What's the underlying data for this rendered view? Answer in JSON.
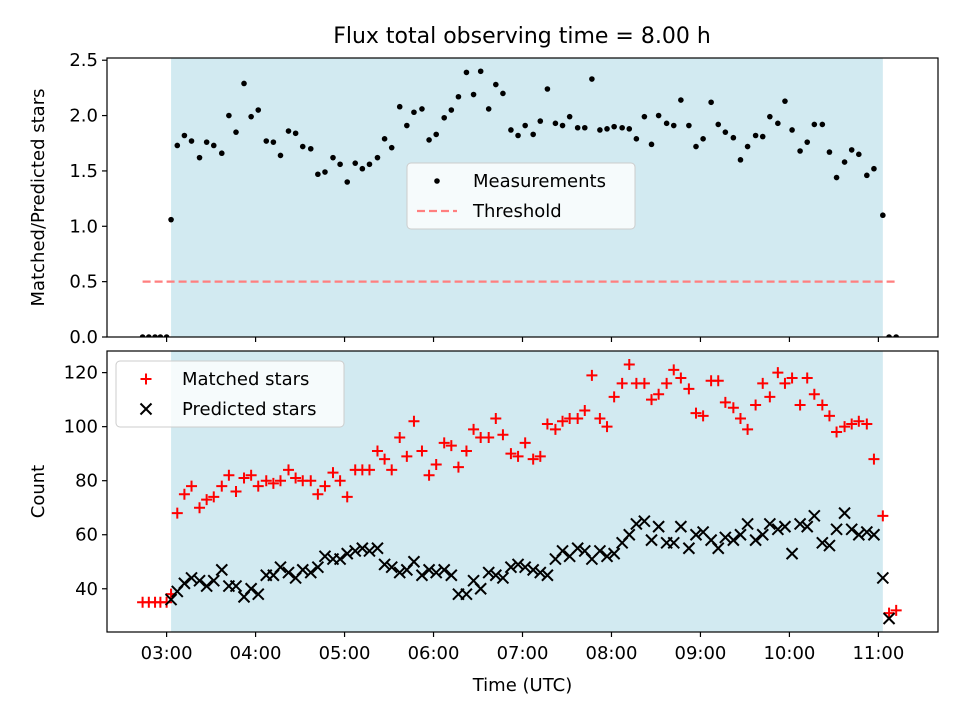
{
  "title": "Flux total observing time = 8.00 h",
  "colors": {
    "shade": "#add8e6",
    "measurement": "#000000",
    "threshold": "#ff7f7f",
    "matched": "#ff0000",
    "predicted": "#000000"
  },
  "chart_data": [
    {
      "type": "scatter",
      "panel": "top",
      "title": "Flux total observing time = 8.00 h",
      "ylabel": "Matched/Predicted stars",
      "xlim": [
        2.33,
        11.67
      ],
      "ylim": [
        0,
        2.52
      ],
      "yticks": [
        0.0,
        0.5,
        1.0,
        1.5,
        2.0,
        2.5
      ],
      "ytick_labels": [
        "0.0",
        "0.5",
        "1.0",
        "1.5",
        "2.0",
        "2.5"
      ],
      "shaded_span": [
        3.05,
        11.05
      ],
      "legend": {
        "placement": "center",
        "entries": [
          "Measurements",
          "Threshold"
        ]
      },
      "series": [
        {
          "name": "Measurements",
          "marker": "dot",
          "x": [
            2.73,
            2.8,
            2.87,
            2.93,
            3.0,
            3.05,
            3.12,
            3.2,
            3.28,
            3.37,
            3.45,
            3.53,
            3.62,
            3.7,
            3.78,
            3.87,
            3.95,
            4.03,
            4.12,
            4.2,
            4.28,
            4.37,
            4.45,
            4.53,
            4.62,
            4.7,
            4.78,
            4.87,
            4.95,
            5.03,
            5.12,
            5.2,
            5.28,
            5.37,
            5.45,
            5.53,
            5.62,
            5.7,
            5.78,
            5.87,
            5.95,
            6.03,
            6.12,
            6.2,
            6.28,
            6.37,
            6.45,
            6.53,
            6.62,
            6.7,
            6.78,
            6.87,
            6.95,
            7.03,
            7.12,
            7.2,
            7.28,
            7.37,
            7.45,
            7.53,
            7.62,
            7.7,
            7.78,
            7.87,
            7.95,
            8.03,
            8.12,
            8.2,
            8.28,
            8.37,
            8.45,
            8.53,
            8.62,
            8.7,
            8.78,
            8.87,
            8.95,
            9.03,
            9.12,
            9.2,
            9.28,
            9.37,
            9.45,
            9.53,
            9.62,
            9.7,
            9.78,
            9.87,
            9.95,
            10.03,
            10.12,
            10.2,
            10.28,
            10.37,
            10.45,
            10.53,
            10.62,
            10.7,
            10.78,
            10.87,
            10.95,
            11.05,
            11.12,
            11.2
          ],
          "y": [
            0.0,
            0.0,
            0.0,
            0.0,
            0.0,
            1.06,
            1.73,
            1.82,
            1.77,
            1.62,
            1.76,
            1.73,
            1.66,
            2.0,
            1.85,
            2.29,
            1.99,
            2.05,
            1.77,
            1.76,
            1.64,
            1.86,
            1.84,
            1.72,
            1.7,
            1.47,
            1.49,
            1.62,
            1.56,
            1.4,
            1.57,
            1.52,
            1.56,
            1.62,
            1.79,
            1.71,
            2.08,
            1.91,
            2.03,
            2.06,
            1.78,
            1.83,
            1.98,
            2.05,
            2.17,
            2.39,
            2.19,
            2.4,
            2.06,
            2.28,
            2.2,
            1.87,
            1.82,
            1.91,
            1.83,
            1.95,
            2.24,
            1.93,
            1.91,
            1.99,
            1.89,
            1.89,
            2.33,
            1.87,
            1.88,
            1.9,
            1.89,
            1.88,
            1.79,
            1.99,
            1.74,
            2.0,
            1.93,
            1.91,
            2.14,
            1.91,
            1.72,
            1.79,
            2.12,
            1.92,
            1.85,
            1.8,
            1.6,
            1.72,
            1.82,
            1.81,
            1.99,
            1.93,
            2.13,
            1.87,
            1.68,
            1.76,
            1.92,
            1.92,
            1.67,
            1.44,
            1.58,
            1.69,
            1.65,
            1.46,
            1.52,
            1.1,
            0.0,
            0.0
          ]
        },
        {
          "name": "Threshold",
          "style": "dashed-line",
          "x": [
            2.73,
            11.2
          ],
          "y": [
            0.5,
            0.5
          ]
        }
      ]
    },
    {
      "type": "scatter",
      "panel": "bottom",
      "xlabel": "Time (UTC)",
      "ylabel": "Count",
      "xlim": [
        2.33,
        11.67
      ],
      "ylim": [
        24,
        128
      ],
      "xticks": [
        3,
        4,
        5,
        6,
        7,
        8,
        9,
        10,
        11
      ],
      "xtick_labels": [
        "03:00",
        "04:00",
        "05:00",
        "06:00",
        "07:00",
        "08:00",
        "09:00",
        "10:00",
        "11:00"
      ],
      "yticks": [
        40,
        60,
        80,
        100,
        120
      ],
      "ytick_labels": [
        "40",
        "60",
        "80",
        "100",
        "120"
      ],
      "shaded_span": [
        3.05,
        11.05
      ],
      "legend": {
        "placement": "top-left",
        "entries": [
          "Matched stars",
          "Predicted stars"
        ]
      },
      "series": [
        {
          "name": "Matched stars",
          "marker": "plus",
          "x": [
            2.73,
            2.8,
            2.87,
            2.93,
            3.0,
            3.05,
            3.12,
            3.2,
            3.28,
            3.37,
            3.45,
            3.53,
            3.62,
            3.7,
            3.78,
            3.87,
            3.95,
            4.03,
            4.12,
            4.2,
            4.28,
            4.37,
            4.45,
            4.53,
            4.62,
            4.7,
            4.78,
            4.87,
            4.95,
            5.03,
            5.12,
            5.2,
            5.28,
            5.37,
            5.45,
            5.53,
            5.62,
            5.7,
            5.78,
            5.87,
            5.95,
            6.03,
            6.12,
            6.2,
            6.28,
            6.37,
            6.45,
            6.53,
            6.62,
            6.7,
            6.78,
            6.87,
            6.95,
            7.03,
            7.12,
            7.2,
            7.28,
            7.37,
            7.45,
            7.53,
            7.62,
            7.7,
            7.78,
            7.87,
            7.95,
            8.03,
            8.12,
            8.2,
            8.28,
            8.37,
            8.45,
            8.53,
            8.62,
            8.7,
            8.78,
            8.87,
            8.95,
            9.03,
            9.12,
            9.2,
            9.28,
            9.37,
            9.45,
            9.53,
            9.62,
            9.7,
            9.78,
            9.87,
            9.95,
            10.03,
            10.12,
            10.2,
            10.28,
            10.37,
            10.45,
            10.53,
            10.62,
            10.7,
            10.78,
            10.87,
            10.95,
            11.05,
            11.12,
            11.2
          ],
          "y": [
            35,
            35,
            35,
            35,
            35,
            38,
            68,
            75,
            78,
            70,
            73,
            74,
            78,
            82,
            76,
            81,
            82,
            78,
            80,
            79,
            80,
            84,
            81,
            80,
            80,
            75,
            78,
            83,
            80,
            74,
            84,
            84,
            84,
            91,
            88,
            84,
            96,
            89,
            102,
            91,
            82,
            86,
            94,
            93,
            85,
            91,
            99,
            96,
            96,
            103,
            97,
            90,
            89,
            94,
            88,
            89,
            101,
            99,
            102,
            103,
            103,
            106,
            119,
            103,
            100,
            111,
            116,
            123,
            116,
            116,
            110,
            112,
            116,
            121,
            118,
            114,
            105,
            104,
            117,
            117,
            109,
            107,
            103,
            99,
            108,
            116,
            111,
            120,
            116,
            118,
            108,
            118,
            112,
            108,
            104,
            98,
            100,
            101,
            102,
            101,
            88,
            67,
            31,
            32
          ]
        },
        {
          "name": "Predicted stars",
          "marker": "x",
          "x": [
            3.05,
            3.12,
            3.2,
            3.28,
            3.37,
            3.45,
            3.53,
            3.62,
            3.7,
            3.78,
            3.87,
            3.95,
            4.03,
            4.12,
            4.2,
            4.28,
            4.37,
            4.45,
            4.53,
            4.62,
            4.7,
            4.78,
            4.87,
            4.95,
            5.03,
            5.12,
            5.2,
            5.28,
            5.37,
            5.45,
            5.53,
            5.62,
            5.7,
            5.78,
            5.87,
            5.95,
            6.03,
            6.12,
            6.2,
            6.28,
            6.37,
            6.45,
            6.53,
            6.62,
            6.7,
            6.78,
            6.87,
            6.95,
            7.03,
            7.12,
            7.2,
            7.28,
            7.37,
            7.45,
            7.53,
            7.62,
            7.7,
            7.78,
            7.87,
            7.95,
            8.03,
            8.12,
            8.2,
            8.28,
            8.37,
            8.45,
            8.53,
            8.62,
            8.7,
            8.78,
            8.87,
            8.95,
            9.03,
            9.12,
            9.2,
            9.28,
            9.37,
            9.45,
            9.53,
            9.62,
            9.7,
            9.78,
            9.87,
            9.95,
            10.03,
            10.12,
            10.2,
            10.28,
            10.37,
            10.45,
            10.53,
            10.62,
            10.7,
            10.78,
            10.87,
            10.95,
            11.05,
            11.12
          ],
          "y": [
            36,
            39,
            42,
            44,
            43,
            41,
            43,
            47,
            41,
            41,
            37,
            40,
            38,
            45,
            45,
            48,
            46,
            44,
            47,
            46,
            48,
            52,
            51,
            51,
            53,
            54,
            55,
            54,
            55,
            49,
            48,
            46,
            47,
            50,
            45,
            47,
            46,
            47,
            45,
            38,
            38,
            43,
            40,
            46,
            45,
            44,
            48,
            49,
            48,
            47,
            46,
            45,
            51,
            54,
            52,
            55,
            54,
            51,
            54,
            52,
            53,
            57,
            60,
            64,
            65,
            58,
            63,
            57,
            57,
            63,
            55,
            60,
            61,
            58,
            55,
            59,
            58,
            60,
            64,
            58,
            60,
            64,
            62,
            63,
            53,
            64,
            63,
            67,
            57,
            56,
            62,
            68,
            62,
            60,
            61,
            60,
            44,
            29
          ]
        }
      ]
    }
  ]
}
